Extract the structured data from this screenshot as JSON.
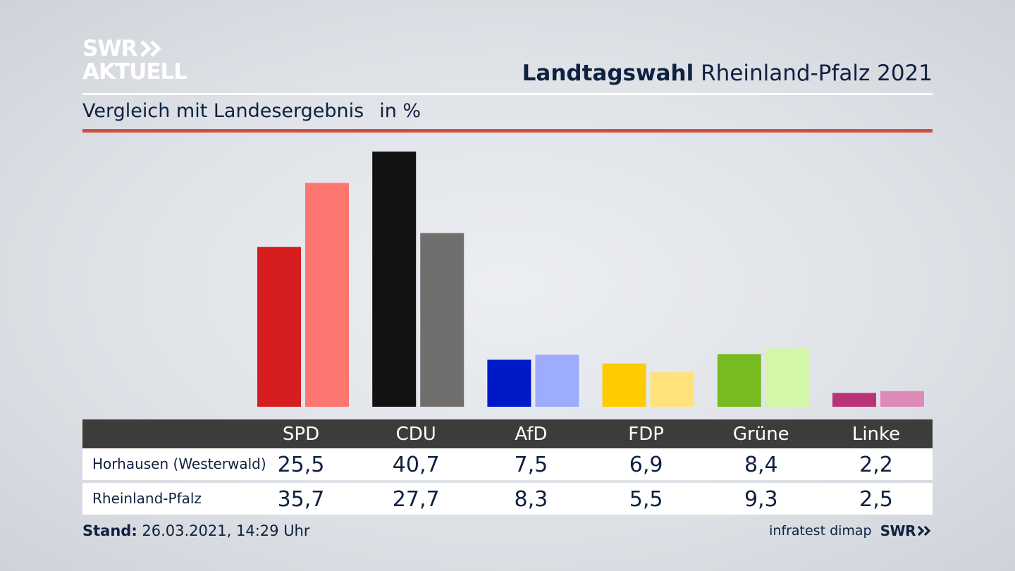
{
  "brand": {
    "line1": "SWR",
    "line2": "AKTUELL",
    "color": "#ffffff"
  },
  "header": {
    "title_bold": "Landtagswahl",
    "title_rest": "Rheinland-Pfalz 2021"
  },
  "subheader": {
    "text": "Vergleich mit Landesergebnis",
    "unit": "in %",
    "rule_color": "#d05040"
  },
  "chart_data": {
    "type": "bar",
    "categories": [
      "SPD",
      "CDU",
      "AfD",
      "FDP",
      "Grüne",
      "Linke"
    ],
    "series": [
      {
        "name": "Horhausen (Westerwald)",
        "values": [
          25.5,
          40.7,
          7.5,
          6.9,
          8.4,
          2.2
        ],
        "colors": [
          "#d61e20",
          "#121212",
          "#0019c8",
          "#ffcc00",
          "#77bb22",
          "#bb3377"
        ]
      },
      {
        "name": "Rheinland-Pfalz",
        "values": [
          35.7,
          27.7,
          8.3,
          5.5,
          9.3,
          2.5
        ],
        "colors": [
          "#ff7670",
          "#716f6d",
          "#9eacfc",
          "#ffe27a",
          "#d4f6a9",
          "#de8ab9"
        ]
      }
    ],
    "ylim": [
      0,
      40.7
    ],
    "grid": false,
    "legend": "table-below"
  },
  "table": {
    "rows": [
      {
        "label": "Horhausen (Westerwald)",
        "values": [
          "25,5",
          "40,7",
          "7,5",
          "6,9",
          "8,4",
          "2,2"
        ]
      },
      {
        "label": "Rheinland-Pfalz",
        "values": [
          "35,7",
          "27,7",
          "8,3",
          "5,5",
          "9,3",
          "2,5"
        ]
      }
    ]
  },
  "footer": {
    "stand_label": "Stand:",
    "stand_value": "26.03.2021, 14:29 Uhr",
    "source": "infratest dimap",
    "logo": "SWR"
  }
}
